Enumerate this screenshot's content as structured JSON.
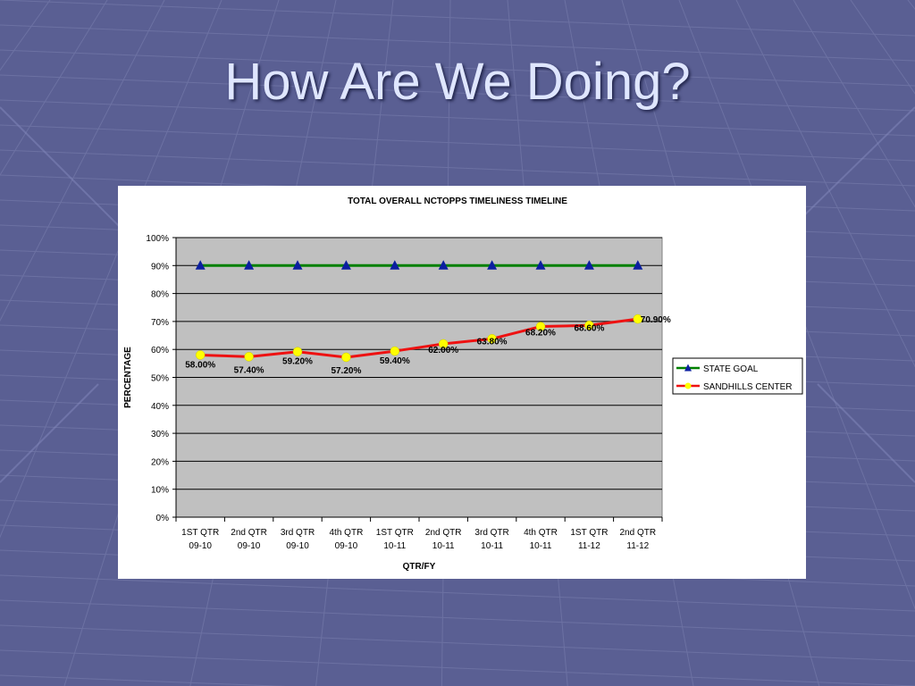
{
  "slide": {
    "title": "How Are We Doing?",
    "background_color": "#5a5f93"
  },
  "chart_data": {
    "type": "line",
    "title": "TOTAL OVERALL NCTOPPS TIMELINESS TIMELINE",
    "xlabel": "QTR/FY",
    "ylabel": "PERCENTAGE",
    "ylim": [
      0,
      100
    ],
    "yticks": [
      "0%",
      "10%",
      "20%",
      "30%",
      "40%",
      "50%",
      "60%",
      "70%",
      "80%",
      "90%",
      "100%"
    ],
    "categories": [
      [
        "1ST QTR",
        "09-10"
      ],
      [
        "2nd QTR",
        "09-10"
      ],
      [
        "3rd QTR",
        "09-10"
      ],
      [
        "4th QTR",
        "09-10"
      ],
      [
        "1ST QTR",
        "10-11"
      ],
      [
        "2nd QTR",
        "10-11"
      ],
      [
        "3rd QTR",
        "10-11"
      ],
      [
        "4th QTR",
        "10-11"
      ],
      [
        "1ST QTR",
        "11-12"
      ],
      [
        "2nd QTR",
        "11-12"
      ]
    ],
    "series": [
      {
        "name": "STATE GOAL",
        "values": [
          90,
          90,
          90,
          90,
          90,
          90,
          90,
          90,
          90,
          90
        ],
        "line_color": "#008000",
        "marker": "triangle",
        "marker_color": "#0b1fa0"
      },
      {
        "name": "SANDHILLS CENTER",
        "values": [
          58.0,
          57.4,
          59.2,
          57.2,
          59.4,
          62.0,
          63.8,
          68.2,
          68.6,
          70.9
        ],
        "data_labels": [
          "58.00%",
          "57.40%",
          "59.20%",
          "57.20%",
          "59.40%",
          "62.00%",
          "63.80%",
          "68.20%",
          "68.60%",
          "70.90%"
        ],
        "line_color": "#ee1111",
        "marker": "circle",
        "marker_color": "#ffff00"
      }
    ],
    "grid": true,
    "plot_background": "#c0c0c0",
    "legend": "right"
  }
}
